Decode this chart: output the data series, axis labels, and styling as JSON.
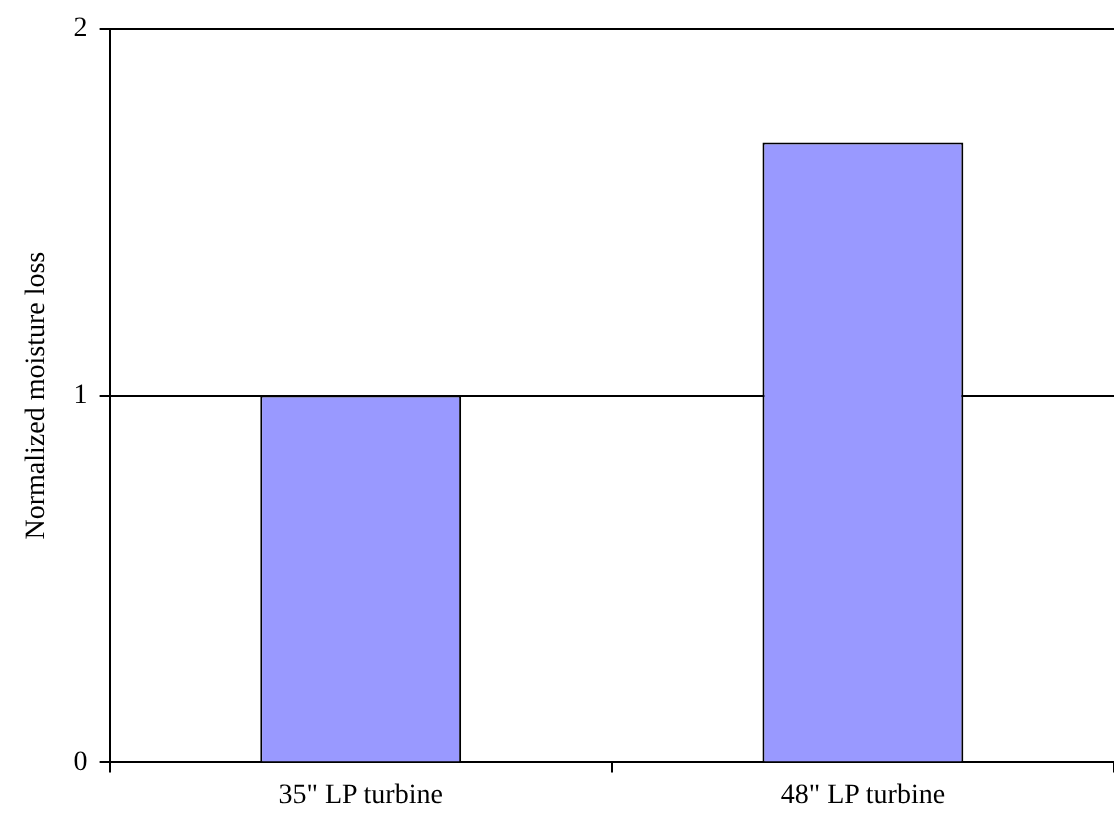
{
  "chart_data": {
    "type": "bar",
    "ylabel": "Normalized moisture loss",
    "categories": [
      "35\" LP turbine",
      "48\" LP turbine"
    ],
    "values": [
      1.0,
      1.69
    ],
    "color": "#9999ff",
    "ylim": [
      0,
      2
    ],
    "yticks": [
      0,
      1,
      2
    ],
    "grid": "y"
  }
}
